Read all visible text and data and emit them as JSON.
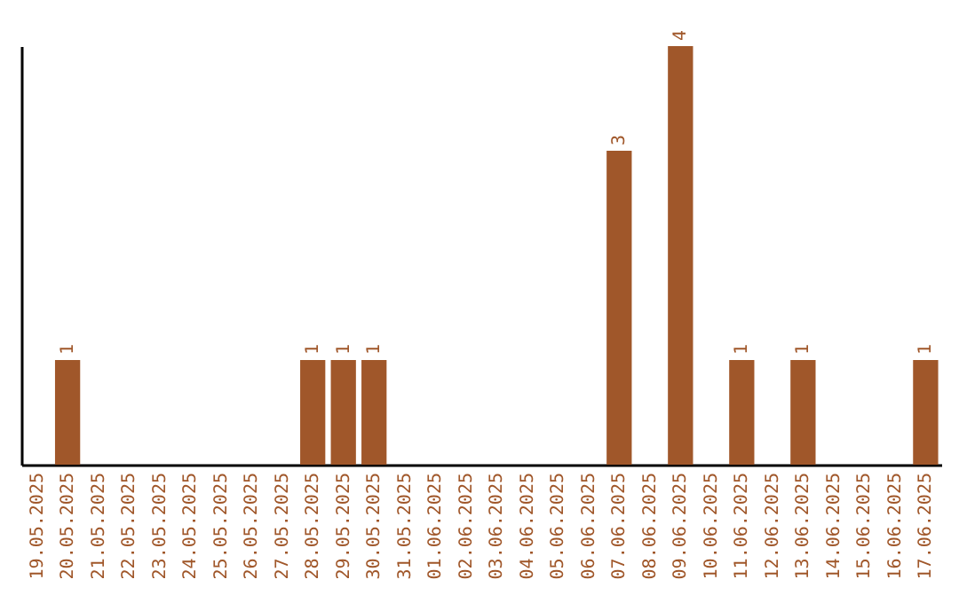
{
  "chart_data": {
    "type": "bar",
    "categories": [
      "19.05.2025",
      "20.05.2025",
      "21.05.2025",
      "22.05.2025",
      "23.05.2025",
      "24.05.2025",
      "25.05.2025",
      "26.05.2025",
      "27.05.2025",
      "28.05.2025",
      "29.05.2025",
      "30.05.2025",
      "31.05.2025",
      "01.06.2025",
      "02.06.2025",
      "03.06.2025",
      "04.06.2025",
      "05.06.2025",
      "06.06.2025",
      "07.06.2025",
      "08.06.2025",
      "09.06.2025",
      "10.06.2025",
      "11.06.2025",
      "12.06.2025",
      "13.06.2025",
      "14.06.2025",
      "15.06.2025",
      "16.06.2025",
      "17.06.2025"
    ],
    "values": [
      0,
      1,
      0,
      0,
      0,
      0,
      0,
      0,
      0,
      1,
      1,
      1,
      0,
      0,
      0,
      0,
      0,
      0,
      0,
      3,
      0,
      4,
      0,
      1,
      0,
      1,
      0,
      0,
      0,
      1
    ],
    "value_labels": [
      null,
      "1",
      null,
      null,
      null,
      null,
      null,
      null,
      null,
      "1",
      "1",
      "1",
      null,
      null,
      null,
      null,
      null,
      null,
      null,
      "3",
      null,
      "4",
      null,
      "1",
      null,
      "1",
      null,
      null,
      null,
      "1"
    ],
    "color": "#a0572a",
    "tick_labels": "x",
    "grid": false
  }
}
